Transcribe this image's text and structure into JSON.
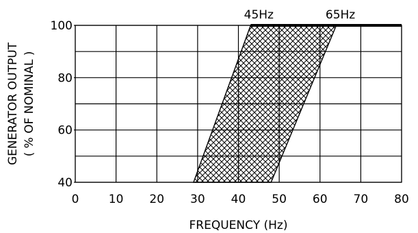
{
  "chart_data": {
    "type": "area",
    "title": "",
    "xlabel": "FREQUENCY (Hz)",
    "ylabel_lines": [
      "GENERATOR OUTPUT",
      "( % OF NOMINAL )"
    ],
    "xlim": [
      0,
      80
    ],
    "ylim": [
      40,
      100
    ],
    "x_ticks": [
      0,
      10,
      20,
      30,
      40,
      50,
      60,
      70,
      80
    ],
    "y_ticks": [
      40,
      60,
      80
    ],
    "y_tick_top": 100,
    "grid": true,
    "band": {
      "polygon": [
        {
          "x": 29,
          "y": 40
        },
        {
          "x": 43,
          "y": 100
        },
        {
          "x": 64,
          "y": 100
        },
        {
          "x": 48,
          "y": 40
        }
      ],
      "fill": "crosshatch"
    },
    "top_line": {
      "x_from": 43,
      "x_to": 80,
      "y": 100
    },
    "annotations": [
      {
        "text": "45Hz",
        "x": 45,
        "y": 100
      },
      {
        "text": "65Hz",
        "x": 65,
        "y": 100
      }
    ]
  }
}
